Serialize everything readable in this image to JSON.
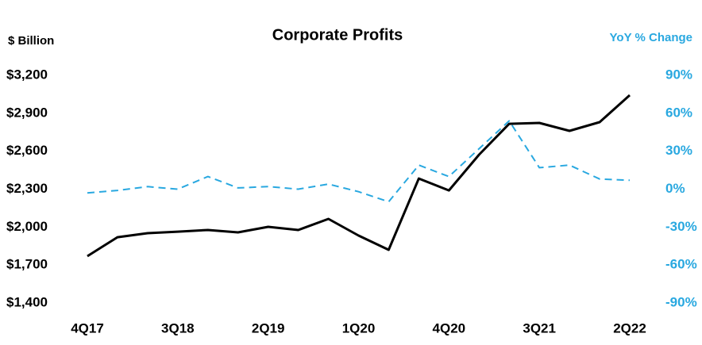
{
  "chart_data": {
    "type": "line",
    "title": "Corporate Profits",
    "y_label": "$ Billion",
    "y2_label": "YoY % Change",
    "categories": [
      "4Q17",
      null,
      null,
      "3Q18",
      null,
      null,
      "2Q19",
      null,
      null,
      "1Q20",
      null,
      null,
      "4Q20",
      null,
      null,
      "3Q21",
      null,
      null,
      "2Q22"
    ],
    "series": [
      {
        "color": "#000000",
        "dashed": false,
        "values": [
          1770,
          1920,
          1952,
          1964,
          1977,
          1958,
          2002,
          1977,
          2065,
          1933,
          1820,
          2384,
          2290,
          2573,
          2817,
          2824,
          2761,
          2830,
          3043
        ]
      },
      {
        "color": "#29a8e0",
        "dashed": true,
        "axis": "y2",
        "values": [
          -3,
          -1,
          2,
          0,
          10,
          1,
          2,
          0,
          4,
          -2,
          -10,
          19,
          10,
          32,
          54,
          17,
          19,
          8,
          7
        ]
      }
    ],
    "ylim": [
      1400,
      3200
    ],
    "yticks": [
      {
        "value": 1400,
        "label": "$1,400"
      },
      {
        "value": 1700,
        "label": "$1,700"
      },
      {
        "value": 2000,
        "label": "$2,000"
      },
      {
        "value": 2300,
        "label": "$2,300"
      },
      {
        "value": 2600,
        "label": "$2,600"
      },
      {
        "value": 2900,
        "label": "$2,900"
      },
      {
        "value": 3200,
        "label": "$3,200"
      }
    ],
    "y2lim": [
      -90,
      90
    ],
    "y2ticks": [
      {
        "value": -90,
        "label": "-90%"
      },
      {
        "value": -60,
        "label": "-60%"
      },
      {
        "value": -30,
        "label": "-30%"
      },
      {
        "value": 0,
        "label": "0%"
      },
      {
        "value": 30,
        "label": "30%"
      },
      {
        "value": 60,
        "label": "60%"
      },
      {
        "value": 90,
        "label": "90%"
      }
    ],
    "grid": false
  }
}
